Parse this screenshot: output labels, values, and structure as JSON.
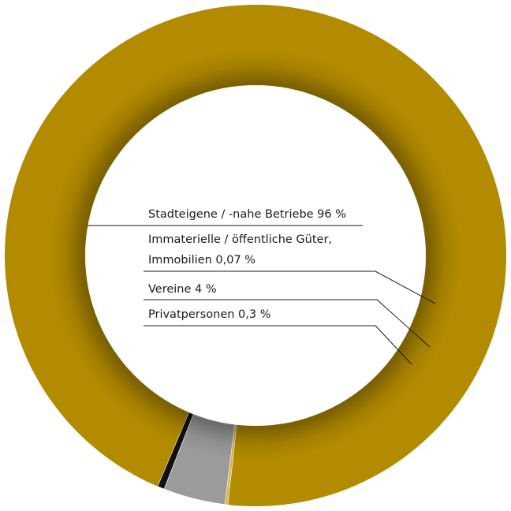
{
  "chart_data": {
    "type": "pie",
    "variant": "donut",
    "slices": [
      {
        "label_lines": [
          "Stadteigene / -nahe Betriebe 96 %"
        ],
        "value": 96,
        "color": "#b38b00"
      },
      {
        "label_lines": [
          "Immaterielle / öffentliche Güter,",
          "Immobilien 0,07 %"
        ],
        "value": 0.07,
        "color": "#d7b84a"
      },
      {
        "label_lines": [
          "Vereine 4 %"
        ],
        "value": 4,
        "color": "#9b9b9b"
      },
      {
        "label_lines": [
          "Privatpersonen 0,3 %"
        ],
        "value": 0.3,
        "color": "#111111"
      }
    ],
    "legend": "none"
  }
}
